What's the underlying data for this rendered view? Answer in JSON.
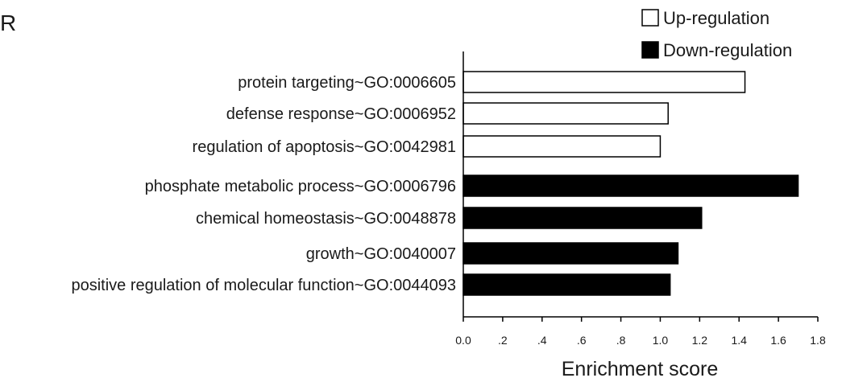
{
  "panel_letter": "R",
  "colors": {
    "up": "#ffffff",
    "down": "#000000",
    "stroke": "#000000"
  },
  "chart_data": {
    "type": "bar",
    "orientation": "horizontal",
    "title": "",
    "xlabel": "Enrichment score",
    "ylabel": "",
    "xlim": [
      0,
      1.8
    ],
    "ticks": [
      0,
      0.2,
      0.4,
      0.6,
      0.8,
      1.0,
      1.2,
      1.4,
      1.6,
      1.8
    ],
    "tick_labels": [
      "0.0",
      ".2",
      ".4",
      ".6",
      ".8",
      "1.0",
      "1.2",
      "1.4",
      "1.6",
      "1.8"
    ],
    "legend": {
      "position": "top-right",
      "entries": [
        {
          "name": "Up-regulation",
          "color": "#ffffff"
        },
        {
          "name": "Down-regulation",
          "color": "#000000"
        }
      ]
    },
    "categories": [
      "protein targeting~GO:0006605",
      "defense response~GO:0006952",
      "regulation of apoptosis~GO:0042981",
      "phosphate metabolic process~GO:0006796",
      "chemical homeostasis~GO:0048878",
      "growth~GO:0040007",
      "positive regulation of molecular function~GO:0044093"
    ],
    "values": [
      1.43,
      1.04,
      1.0,
      1.7,
      1.21,
      1.09,
      1.05
    ],
    "groups": [
      "Up-regulation",
      "Up-regulation",
      "Up-regulation",
      "Down-regulation",
      "Down-regulation",
      "Down-regulation",
      "Down-regulation"
    ]
  }
}
